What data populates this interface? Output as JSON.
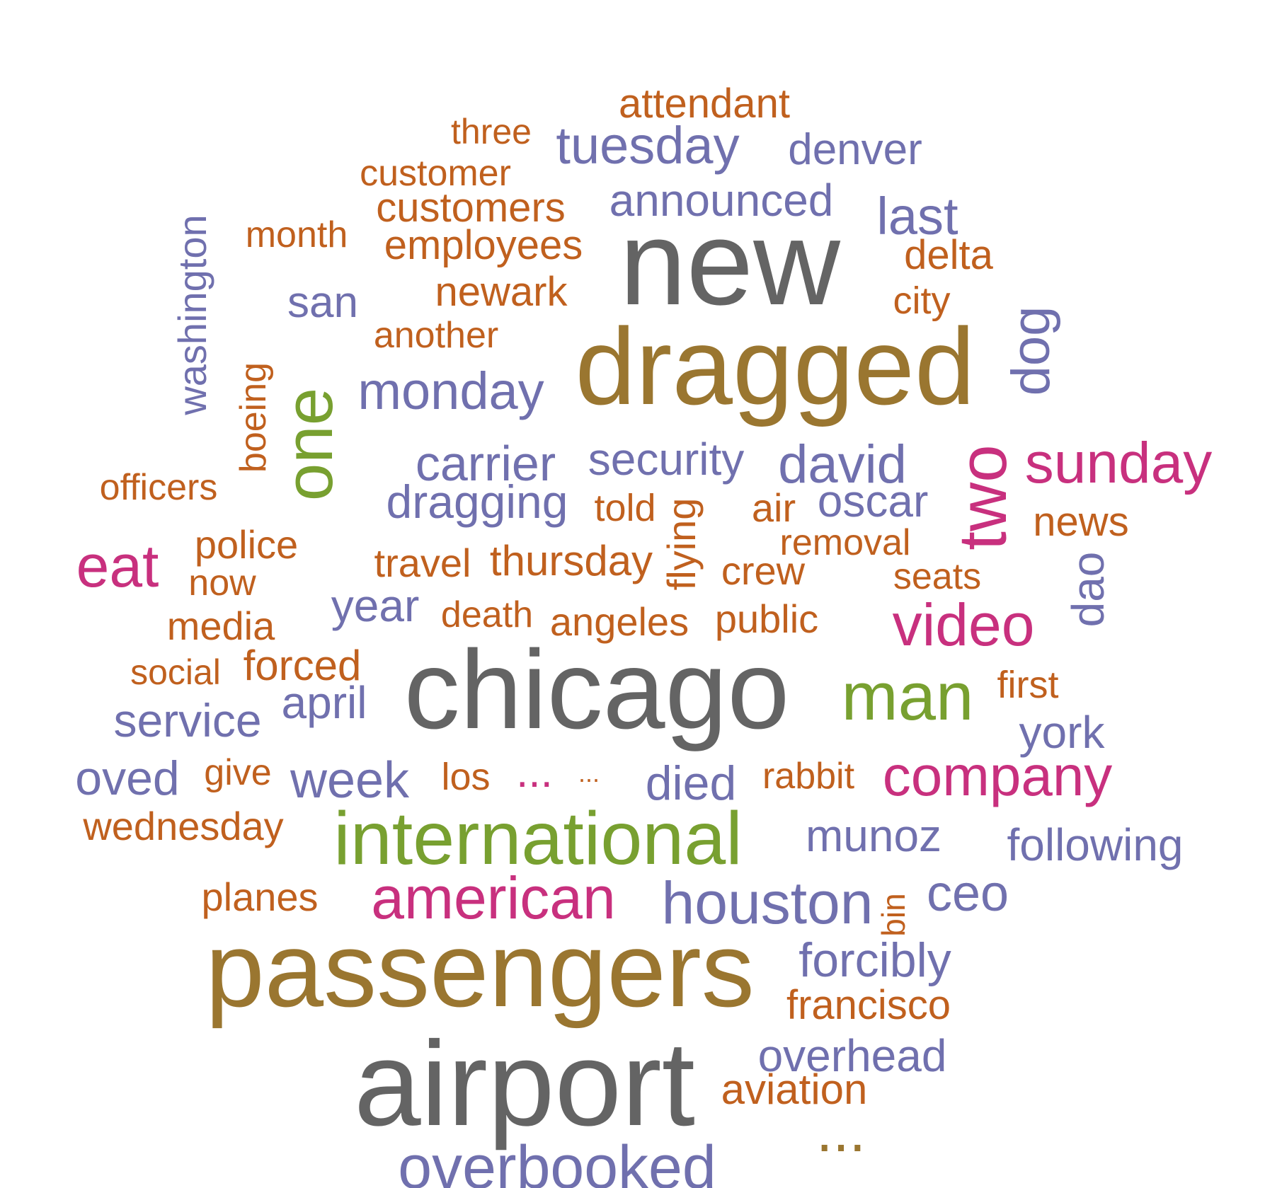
{
  "palette": {
    "orange": "#c0601e",
    "purple": "#7070ae",
    "gray": "#646464",
    "olive": "#9a7630",
    "green": "#78a030",
    "magenta": "#c8307e"
  },
  "words": [
    {
      "text": "attendant",
      "color": "orange"
    },
    {
      "text": "three",
      "color": "orange"
    },
    {
      "text": "tuesday",
      "color": "purple"
    },
    {
      "text": "denver",
      "color": "purple"
    },
    {
      "text": "customer",
      "color": "orange"
    },
    {
      "text": "customers",
      "color": "orange"
    },
    {
      "text": "announced",
      "color": "purple"
    },
    {
      "text": "last",
      "color": "purple"
    },
    {
      "text": "washington",
      "color": "purple"
    },
    {
      "text": "month",
      "color": "orange"
    },
    {
      "text": "employees",
      "color": "orange"
    },
    {
      "text": "new",
      "color": "gray"
    },
    {
      "text": "delta",
      "color": "orange"
    },
    {
      "text": "newark",
      "color": "orange"
    },
    {
      "text": "san",
      "color": "purple"
    },
    {
      "text": "city",
      "color": "orange"
    },
    {
      "text": "another",
      "color": "orange"
    },
    {
      "text": "dog",
      "color": "purple"
    },
    {
      "text": "dragged",
      "color": "olive"
    },
    {
      "text": "boeing",
      "color": "orange"
    },
    {
      "text": "one",
      "color": "green"
    },
    {
      "text": "monday",
      "color": "purple"
    },
    {
      "text": "officers",
      "color": "orange"
    },
    {
      "text": "carrier",
      "color": "purple"
    },
    {
      "text": "security",
      "color": "purple"
    },
    {
      "text": "david",
      "color": "purple"
    },
    {
      "text": "two",
      "color": "magenta"
    },
    {
      "text": "sunday",
      "color": "magenta"
    },
    {
      "text": "dragging",
      "color": "purple"
    },
    {
      "text": "told",
      "color": "orange"
    },
    {
      "text": "flying",
      "color": "orange"
    },
    {
      "text": "air",
      "color": "orange"
    },
    {
      "text": "oscar",
      "color": "purple"
    },
    {
      "text": "news",
      "color": "orange"
    },
    {
      "text": "eat",
      "color": "magenta"
    },
    {
      "text": "police",
      "color": "orange"
    },
    {
      "text": "travel",
      "color": "orange"
    },
    {
      "text": "thursday",
      "color": "orange"
    },
    {
      "text": "removal",
      "color": "orange"
    },
    {
      "text": "now",
      "color": "orange"
    },
    {
      "text": "crew",
      "color": "orange"
    },
    {
      "text": "seats",
      "color": "orange"
    },
    {
      "text": "dao",
      "color": "purple"
    },
    {
      "text": "year",
      "color": "purple"
    },
    {
      "text": "video",
      "color": "magenta"
    },
    {
      "text": "media",
      "color": "orange"
    },
    {
      "text": "death",
      "color": "orange"
    },
    {
      "text": "angeles",
      "color": "orange"
    },
    {
      "text": "public",
      "color": "orange"
    },
    {
      "text": "social",
      "color": "orange"
    },
    {
      "text": "forced",
      "color": "orange"
    },
    {
      "text": "chicago",
      "color": "gray"
    },
    {
      "text": "man",
      "color": "green"
    },
    {
      "text": "first",
      "color": "orange"
    },
    {
      "text": "april",
      "color": "purple"
    },
    {
      "text": "service",
      "color": "purple"
    },
    {
      "text": "york",
      "color": "purple"
    },
    {
      "text": "oved",
      "color": "purple"
    },
    {
      "text": "give",
      "color": "orange"
    },
    {
      "text": "week",
      "color": "purple"
    },
    {
      "text": "los",
      "color": "orange"
    },
    {
      "text": "...",
      "color": "magenta"
    },
    {
      "text": "...",
      "color": "orange"
    },
    {
      "text": "died",
      "color": "purple"
    },
    {
      "text": "rabbit",
      "color": "orange"
    },
    {
      "text": "company",
      "color": "magenta"
    },
    {
      "text": "wednesday",
      "color": "orange"
    },
    {
      "text": "international",
      "color": "green"
    },
    {
      "text": "munoz",
      "color": "purple"
    },
    {
      "text": "following",
      "color": "purple"
    },
    {
      "text": "planes",
      "color": "orange"
    },
    {
      "text": "american",
      "color": "magenta"
    },
    {
      "text": "houston",
      "color": "purple"
    },
    {
      "text": "bin",
      "color": "orange"
    },
    {
      "text": "ceo",
      "color": "purple"
    },
    {
      "text": "passengers",
      "color": "olive"
    },
    {
      "text": "forcibly",
      "color": "purple"
    },
    {
      "text": "francisco",
      "color": "orange"
    },
    {
      "text": "airport",
      "color": "gray"
    },
    {
      "text": "overhead",
      "color": "purple"
    },
    {
      "text": "aviation",
      "color": "orange"
    },
    {
      "text": "...",
      "color": "olive"
    },
    {
      "text": "overbooked",
      "color": "purple"
    }
  ]
}
